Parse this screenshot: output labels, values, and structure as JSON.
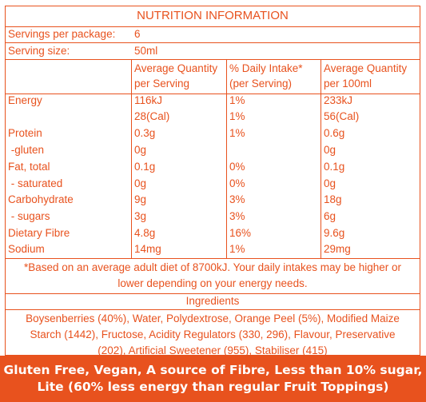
{
  "panel": {
    "title": "NUTRITION INFORMATION",
    "servings_label": "Servings per package:",
    "servings_value": "6",
    "serving_size_label": "Serving size:",
    "serving_size_value": "50ml",
    "headers": {
      "col1": [
        "Average Quantity",
        "per Serving"
      ],
      "col2": [
        "% Daily Intake*",
        "(per Serving)"
      ],
      "col3": [
        "Average Quantity",
        "per 100ml"
      ]
    },
    "nutrients": [
      {
        "name": "Energy",
        "serving": "116kJ",
        "di": "1%",
        "per100": "233kJ"
      },
      {
        "name": "",
        "serving": "28(Cal)",
        "di": "1%",
        "per100": "56(Cal)"
      },
      {
        "name": "Protein",
        "serving": "0.3g",
        "di": "1%",
        "per100": "0.6g"
      },
      {
        "name": " -gluten",
        "serving": "0g",
        "di": "",
        "per100": "0g"
      },
      {
        "name": "Fat, total",
        "serving": "0.1g",
        "di": "0%",
        "per100": "0.1g"
      },
      {
        "name": " - saturated",
        "serving": "0g",
        "di": "0%",
        "per100": "0g"
      },
      {
        "name": "Carbohydrate",
        "serving": "9g",
        "di": "3%",
        "per100": "18g"
      },
      {
        "name": " - sugars",
        "serving": "3g",
        "di": "3%",
        "per100": "6g"
      },
      {
        "name": "Dietary Fibre",
        "serving": "4.8g",
        "di": "16%",
        "per100": "9.6g"
      },
      {
        "name": "Sodium",
        "serving": "14mg",
        "di": "1%",
        "per100": "29mg"
      }
    ],
    "footnote": [
      "*Based on an average adult diet of 8700kJ. Your daily intakes may be higher or",
      "lower depending on your energy needs."
    ],
    "ingredients_heading": "Ingredients",
    "ingredients": [
      "Boysenberries (40%), Water, Polydextrose, Orange Peel (5%), Modified Maize",
      "Starch (1442), Fructose, Acidity Regulators (330, 296), Flavour, Preservative",
      "(202), Artificial Sweetener (955), Stabiliser (415)"
    ]
  },
  "banner": {
    "line1": "Gluten Free, Vegan, A source of Fibre, Less than 10% sugar,",
    "line2": "Lite (60% less energy than regular Fruit Toppings)"
  },
  "colors": {
    "accent": "#e8521e",
    "background": "#ffffff"
  }
}
